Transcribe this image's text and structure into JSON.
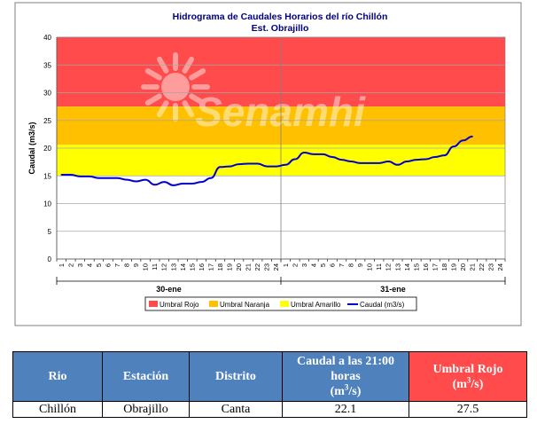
{
  "chart_data": {
    "type": "line",
    "title": "Hidrograma de Caudales Horarios del río Chillón",
    "subtitle": "Est. Obrajillo",
    "watermark": "Senamhi",
    "ylabel": "Caudal  (m3/s)",
    "ylim": [
      0,
      40
    ],
    "yticks": [
      0,
      5,
      10,
      15,
      20,
      25,
      30,
      35,
      40
    ],
    "hour_labels": [
      "1",
      "2",
      "3",
      "4",
      "5",
      "6",
      "7",
      "8",
      "9",
      "10",
      "11",
      "12",
      "13",
      "14",
      "15",
      "16",
      "17",
      "18",
      "19",
      "20",
      "21",
      "22",
      "23",
      "24"
    ],
    "days": [
      "30-ene",
      "31-ene"
    ],
    "thresholds": [
      {
        "name": "Umbral Rojo",
        "from": 27.5,
        "to": 40,
        "color": "#ff4b4b"
      },
      {
        "name": "Umbral Naranja",
        "from": 20.6,
        "to": 27.5,
        "color": "#ffc000"
      },
      {
        "name": "Umbral Amarillo",
        "from": 15.0,
        "to": 20.6,
        "color": "#ffff00"
      }
    ],
    "series": [
      {
        "name": "Caudal (m3/s)",
        "color": "#0000cc",
        "day": "30-ene",
        "values": [
          15.2,
          15.2,
          14.9,
          14.9,
          14.6,
          14.6,
          14.6,
          14.3,
          14.0,
          14.3,
          13.4,
          13.9,
          13.3,
          13.6,
          13.6,
          13.9,
          14.6,
          16.6,
          16.7,
          17.1,
          17.2,
          17.2,
          16.7,
          16.7
        ]
      },
      {
        "name": "Caudal (m3/s)",
        "color": "#0000cc",
        "day": "31-ene",
        "values": [
          17.0,
          18.0,
          19.2,
          18.9,
          18.9,
          18.4,
          17.9,
          17.6,
          17.3,
          17.3,
          17.3,
          17.6,
          17.0,
          17.6,
          17.9,
          18.0,
          18.4,
          18.7,
          20.3,
          21.4,
          22.1
        ]
      }
    ],
    "legend": [
      "Umbral Rojo",
      "Umbral Naranja",
      "Umbral Amarillo",
      "Caudal (m3/s)"
    ]
  },
  "table": {
    "headers": {
      "rio": "Rio",
      "estacion": "Estación",
      "distrito": "Distrito",
      "caudal_main": "Caudal a las 21:00 horas",
      "caudal_unit": "(m",
      "caudal_sup": "3",
      "caudal_close": "/s)",
      "umbral_main": "Umbral Rojo",
      "umbral_unit": "(m",
      "umbral_sup": "3",
      "umbral_close": "/s)"
    },
    "row": {
      "rio": "Chillón",
      "estacion": "Obrajillo",
      "distrito": "Canta",
      "caudal": "22.1",
      "umbral": "27.5"
    }
  }
}
